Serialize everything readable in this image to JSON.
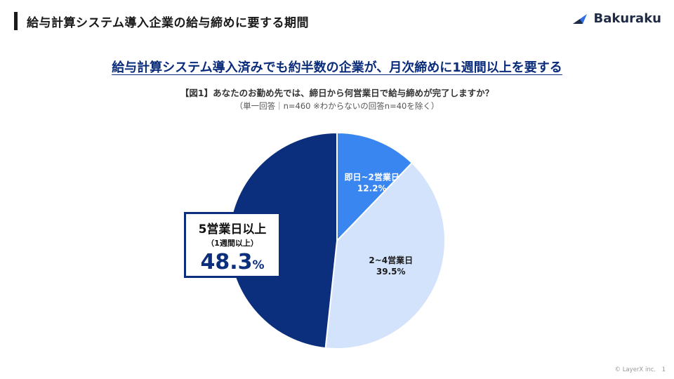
{
  "header": {
    "title": "給与計算システム導入企業の給与締めに要する期間",
    "brand": "Bakuraku"
  },
  "headline": "給与計算システム導入済みでも約半数の企業が、月次締めに1週間以上を要する",
  "question": "【図1】あなたのお勤め先では、締日から何営業日で給与締めが完了しますか？",
  "note": "（単一回答｜n=460 ※わからないの回答n=40を除く）",
  "callout": {
    "label": "5営業日以上",
    "sub": "（1週間以上）",
    "value": "48.3",
    "unit": "%"
  },
  "footer": "© LayerX inc.　1",
  "colors": {
    "dark_navy": "#0b2f7c",
    "blue": "#3a86f0",
    "light_blue": "#d3e3fb"
  },
  "chart_data": {
    "type": "pie",
    "start": "12 o'clock, clockwise",
    "slices": [
      {
        "label": "即日~2営業日",
        "value": 12.2,
        "display": "12.2%",
        "color": "#3a86f0"
      },
      {
        "label": "2~4営業日",
        "value": 39.5,
        "display": "39.5%",
        "color": "#d3e3fb"
      },
      {
        "label": "5営業日以上",
        "value": 48.3,
        "display": "48.3%",
        "color": "#0b2f7c"
      }
    ]
  }
}
